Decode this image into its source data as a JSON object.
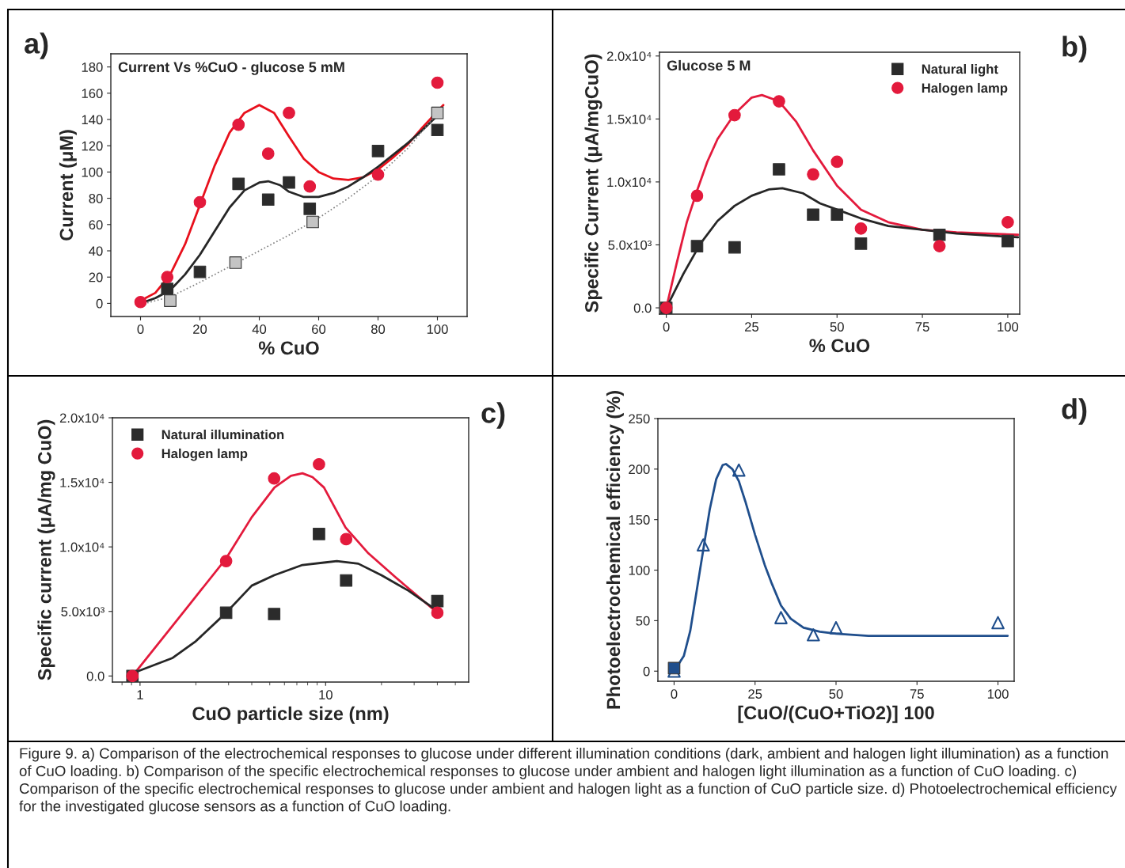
{
  "chart_data": [
    {
      "type": "scatter",
      "title": "Current Vs %CuO - glucose 5 mM",
      "xlabel": "% CuO",
      "ylabel": "Current (μM)",
      "xlim": [
        -10,
        110
      ],
      "ylim": [
        -10,
        190
      ],
      "xticks": [
        0,
        20,
        40,
        60,
        80,
        100
      ],
      "yticks": [
        0,
        20,
        40,
        60,
        80,
        100,
        120,
        140,
        160,
        180
      ],
      "grid": false,
      "legend": false,
      "annotations": [
        "a)"
      ],
      "series": [
        {
          "type": "line",
          "color": "#e8101c",
          "line_style": "solid",
          "marker": "none",
          "x": [
            0,
            5,
            10,
            15,
            20,
            25,
            30,
            35,
            40,
            45,
            50,
            55,
            60,
            65,
            70,
            75,
            80,
            85,
            90,
            95,
            102
          ],
          "values": [
            2,
            8,
            22,
            45,
            75,
            105,
            130,
            145,
            151,
            145,
            127,
            110,
            100,
            95,
            94,
            96,
            102,
            111,
            121,
            134,
            151
          ]
        },
        {
          "type": "line",
          "color": "#262626",
          "line_style": "solid",
          "marker": "none",
          "x": [
            0,
            5,
            10,
            15,
            20,
            25,
            30,
            35,
            40,
            43,
            47,
            50,
            55,
            60,
            65,
            70,
            75,
            80,
            85,
            90,
            95,
            100
          ],
          "values": [
            0,
            4,
            10,
            22,
            37,
            55,
            73,
            86,
            92,
            93,
            90,
            85,
            81,
            81,
            84,
            89,
            96,
            104,
            113,
            122,
            132,
            143
          ]
        },
        {
          "type": "line",
          "color": "#808080",
          "line_style": "dotted",
          "marker": "none",
          "x": [
            0,
            10,
            20,
            30,
            40,
            50,
            60,
            70,
            80,
            90,
            102
          ],
          "values": [
            -1,
            5,
            16,
            28,
            40,
            52,
            65,
            80,
            97,
            118,
            150
          ]
        },
        {
          "color": "#2b2b2b",
          "marker": "square",
          "x": [
            9,
            20,
            33,
            43,
            50,
            57,
            80,
            100
          ],
          "values": [
            11,
            24,
            91,
            79,
            92,
            72,
            116,
            132
          ]
        },
        {
          "color": "#c4c4c4",
          "marker": "square",
          "x": [
            10,
            32,
            58,
            100
          ],
          "values": [
            2,
            31,
            62,
            145
          ]
        },
        {
          "color": "#e31a3c",
          "marker": "circle",
          "x": [
            0,
            9,
            20,
            33,
            43,
            50,
            57,
            80,
            100
          ],
          "values": [
            1,
            20,
            77,
            136,
            114,
            145,
            89,
            98,
            168
          ]
        }
      ]
    },
    {
      "type": "scatter",
      "title": "Glucose 5 M",
      "xlabel": "% CuO",
      "ylabel": "Specific Current (μA/mgCuO)",
      "xlim": [
        -2,
        103.5
      ],
      "ylim": [
        -500,
        20300
      ],
      "xticks": [
        0,
        25,
        50,
        75,
        100
      ],
      "yticks": [
        {
          "value": 0,
          "label": "0.0"
        },
        {
          "value": 5000,
          "label": "5.0x10³"
        },
        {
          "value": 10000,
          "label": "1.0x10⁴"
        },
        {
          "value": 15000,
          "label": "1.5x10⁴"
        },
        {
          "value": 20000,
          "label": "2.0x10⁴"
        }
      ],
      "grid": false,
      "legend": "top right",
      "annotations": [
        "b)"
      ],
      "series": [
        {
          "type": "line",
          "color": "#e31a3c",
          "line_style": "solid",
          "marker": "none",
          "x": [
            0,
            3,
            6,
            9,
            12,
            15,
            20,
            25,
            28,
            33,
            38,
            43,
            50,
            57,
            65,
            75,
            85,
            103
          ],
          "values": [
            0,
            3500,
            6800,
            9300,
            11600,
            13400,
            15400,
            16700,
            16900,
            16400,
            14800,
            12500,
            9700,
            7800,
            6800,
            6200,
            6000,
            5800
          ]
        },
        {
          "type": "line",
          "color": "#262626",
          "line_style": "solid",
          "marker": "none",
          "x": [
            0,
            5,
            10,
            15,
            20,
            25,
            30,
            34,
            40,
            45,
            50,
            57,
            65,
            75,
            85,
            103
          ],
          "values": [
            0,
            2700,
            5100,
            6900,
            8100,
            8900,
            9400,
            9500,
            9100,
            8300,
            7800,
            7100,
            6500,
            6200,
            5900,
            5600
          ]
        },
        {
          "name": "Natural light",
          "color": "#2b2b2b",
          "marker": "square",
          "x": [
            0,
            9,
            20,
            33,
            43,
            50,
            57,
            80,
            100
          ],
          "values": [
            0,
            4900,
            4800,
            11000,
            7400,
            7400,
            5100,
            5800,
            5300
          ]
        },
        {
          "name": "Halogen lamp",
          "color": "#e31a3c",
          "marker": "circle",
          "x": [
            0,
            9,
            20,
            33,
            43,
            50,
            57,
            80,
            100
          ],
          "values": [
            0,
            8900,
            15300,
            16400,
            10600,
            11600,
            6300,
            4900,
            6800
          ]
        }
      ]
    },
    {
      "type": "scatter",
      "xlabel": "CuO particle size (nm)",
      "ylabel": "Specific current (μA/mg CuO)",
      "log": "x",
      "xlim": [
        0.71,
        59
      ],
      "ylim": [
        -470,
        20000
      ],
      "xticks": [
        1,
        10
      ],
      "yticks": [
        {
          "value": 0,
          "label": "0.0"
        },
        {
          "value": 5000,
          "label": "5.0x10³"
        },
        {
          "value": 10000,
          "label": "1.0x10⁴"
        },
        {
          "value": 15000,
          "label": "1.5x10⁴"
        },
        {
          "value": 20000,
          "label": "2.0x10⁴"
        }
      ],
      "grid": false,
      "legend": "top left",
      "annotations": [
        "c)"
      ],
      "series": [
        {
          "type": "line",
          "color": "#e31a3c",
          "line_style": "solid",
          "marker": "none",
          "x": [
            0.91,
            1.5,
            2.91,
            4.0,
            5.3,
            6.5,
            7.5,
            8.5,
            9.8,
            12.8,
            17,
            24,
            40
          ],
          "values": [
            0,
            3900,
            9100,
            12300,
            14600,
            15500,
            15700,
            15400,
            14600,
            11500,
            9500,
            7600,
            4900
          ]
        },
        {
          "type": "line",
          "color": "#262626",
          "line_style": "solid",
          "marker": "none",
          "x": [
            0.91,
            1.5,
            2.0,
            2.91,
            4.0,
            5.28,
            7.5,
            10,
            11.5,
            15,
            20,
            28,
            40
          ],
          "values": [
            200,
            1400,
            2700,
            4900,
            7000,
            7800,
            8600,
            8800,
            8900,
            8700,
            7800,
            6600,
            5050
          ]
        },
        {
          "name": "Natural illumination",
          "color": "#2b2b2b",
          "marker": "square",
          "x": [
            0.91,
            2.91,
            5.28,
            9.21,
            12.9,
            40
          ],
          "values": [
            0,
            4900,
            4800,
            11000,
            7400,
            5800
          ]
        },
        {
          "name": "Halogen lamp",
          "color": "#e31a3c",
          "marker": "circle",
          "x": [
            0.91,
            2.91,
            5.28,
            9.21,
            12.9,
            40
          ],
          "values": [
            0,
            8900,
            15300,
            16400,
            10600,
            4900
          ]
        }
      ]
    },
    {
      "type": "scatter",
      "xlabel": "[CuO/(CuO+TiO2)] 100",
      "ylabel": "Photoelectrochemical efficiency (%)",
      "xlim": [
        -5,
        105
      ],
      "ylim": [
        -10,
        250
      ],
      "xticks": [
        0,
        25,
        50,
        75,
        100
      ],
      "yticks": [
        0,
        50,
        100,
        150,
        200,
        250
      ],
      "grid": false,
      "legend": false,
      "annotations": [
        "d)",
        "Figure 9. a) Comparison of the electrochemical responses to glucose under different illumination conditions (dark, ambient and halogen light illumination) as a function of CuO loading. b) Comparison of the specific electrochemical responses to glucose under ambient and halogen light illumination as a function of CuO loading. c) Comparison of the specific electrochemical responses to glucose under ambient and halogen light as a function of CuO particle size. d) Photoelectrochemical efficiency for the investigated glucose sensors as a function of CuO loading."
      ],
      "series": [
        {
          "type": "line",
          "color": "#1f4e8c",
          "line_style": "solid",
          "marker": "none",
          "x": [
            0,
            3,
            5,
            7,
            9,
            11,
            13,
            15,
            16,
            18,
            20,
            22,
            25,
            28,
            30,
            33,
            36,
            40,
            45,
            50,
            60,
            75,
            100,
            103
          ],
          "values": [
            0,
            15,
            40,
            80,
            120,
            160,
            190,
            204,
            205,
            200,
            188,
            168,
            135,
            105,
            88,
            65,
            52,
            43,
            39,
            37,
            35,
            35,
            35,
            35
          ]
        },
        {
          "color": "#1f4e8c",
          "marker": "triangle",
          "x": [
            0,
            9,
            20,
            33,
            43,
            50,
            100
          ],
          "values": [
            0,
            125,
            199,
            53,
            36,
            43,
            48
          ]
        },
        {
          "color": "#1f4e8c",
          "marker": "square",
          "x": [
            0
          ],
          "values": [
            3
          ]
        }
      ]
    }
  ]
}
